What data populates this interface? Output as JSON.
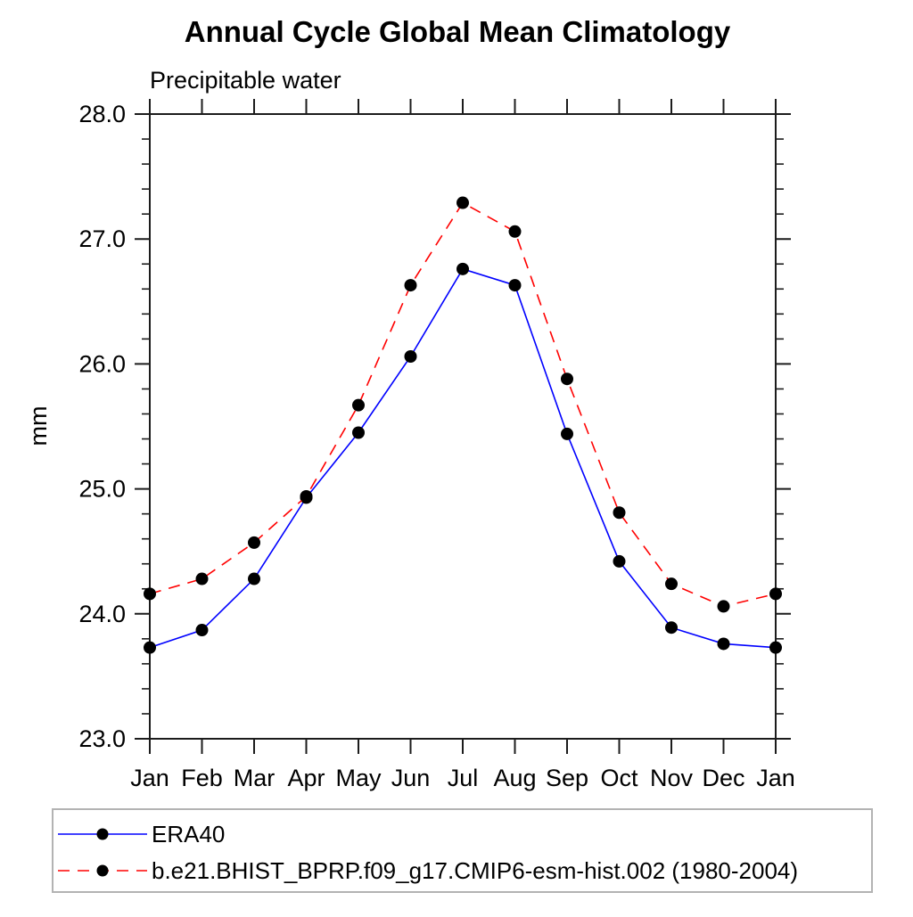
{
  "page": {
    "background": "#ffffff"
  },
  "chart_data": {
    "type": "line",
    "title": "Annual Cycle Global Mean Climatology",
    "subtitle": "Precipitable water",
    "ylabel": "mm",
    "xlabel": "",
    "categories": [
      "Jan",
      "Feb",
      "Mar",
      "Apr",
      "May",
      "Jun",
      "Jul",
      "Aug",
      "Sep",
      "Oct",
      "Nov",
      "Dec",
      "Jan"
    ],
    "series": [
      {
        "name": "ERA40",
        "color": "#0000ff",
        "line_style": "solid",
        "marker": "filled-circle",
        "marker_color": "#000000",
        "values": [
          23.73,
          23.87,
          24.28,
          24.93,
          25.45,
          26.06,
          26.76,
          26.63,
          25.44,
          24.42,
          23.89,
          23.76,
          23.73
        ]
      },
      {
        "name": "b.e21.BHIST_BPRP.f09_g17.CMIP6-esm-hist.002 (1980-2004)",
        "color": "#ff0000",
        "line_style": "dashed",
        "marker": "filled-circle",
        "marker_color": "#000000",
        "values": [
          24.16,
          24.28,
          24.57,
          24.94,
          25.67,
          26.63,
          27.29,
          27.06,
          25.88,
          24.81,
          24.24,
          24.06,
          24.16
        ]
      }
    ],
    "ylim": [
      23.0,
      28.0
    ],
    "yticks": {
      "values": [
        23.0,
        24.0,
        25.0,
        26.0,
        27.0,
        28.0
      ],
      "labels": [
        "23.0",
        "24.0",
        "25.0",
        "26.0",
        "27.0",
        "28.0"
      ],
      "minor_step": 0.2
    },
    "grid": false,
    "legend_position": "bottom-left",
    "legend_border_color": "#b3b3b3",
    "axis_color": "#1c1c1c"
  }
}
